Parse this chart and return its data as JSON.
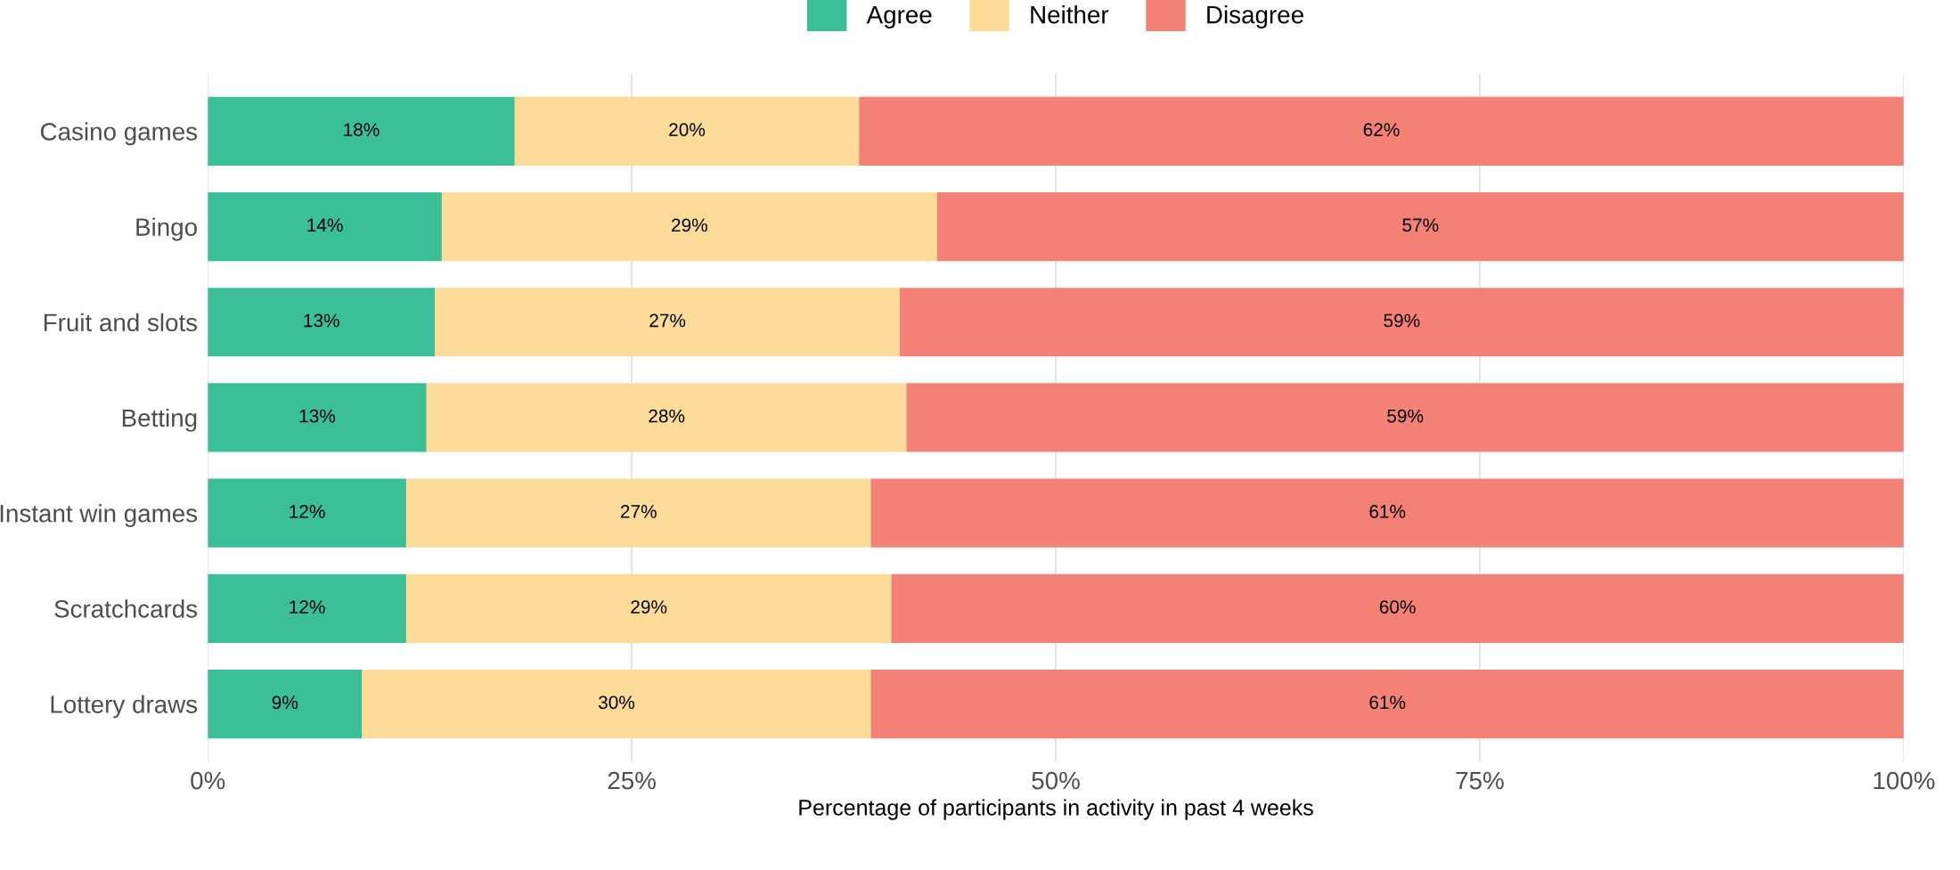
{
  "chart_data": {
    "type": "bar",
    "orientation": "horizontal",
    "stacked": true,
    "categories": [
      "Casino games",
      "Bingo",
      "Fruit and slots",
      "Betting",
      "Instant win games",
      "Scratchcards",
      "Lottery draws"
    ],
    "series": [
      {
        "name": "Agree",
        "color": "#3bbf97",
        "values": [
          18.1,
          13.8,
          13.4,
          12.9,
          11.7,
          11.7,
          9.1
        ],
        "value_labels": [
          "18%",
          "14%",
          "13%",
          "13%",
          "12%",
          "12%",
          "9%"
        ]
      },
      {
        "name": "Neither",
        "color": "#fddc9a",
        "values": [
          20.3,
          29.2,
          27.4,
          28.3,
          27.4,
          28.6,
          30.0
        ],
        "value_labels": [
          "20%",
          "29%",
          "27%",
          "28%",
          "27%",
          "29%",
          "30%"
        ]
      },
      {
        "name": "Disagree",
        "color": "#f48176",
        "values": [
          61.6,
          57.0,
          59.2,
          58.8,
          60.9,
          59.7,
          60.9
        ],
        "value_labels": [
          "62%",
          "57%",
          "59%",
          "59%",
          "61%",
          "60%",
          "61%"
        ]
      }
    ],
    "xlim": [
      0,
      100
    ],
    "xticks": [
      {
        "value": 0,
        "label": "0%"
      },
      {
        "value": 25,
        "label": "25%"
      },
      {
        "value": 50,
        "label": "50%"
      },
      {
        "value": 75,
        "label": "75%"
      },
      {
        "value": 100,
        "label": "100%"
      }
    ],
    "xlabel": "Percentage of participants in activity in past 4 weeks",
    "grid": "x",
    "legend": "top"
  }
}
